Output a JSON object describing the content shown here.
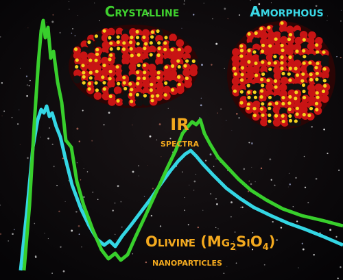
{
  "labels": {
    "crystalline": "Crystalline",
    "amorphous": "Amorphous",
    "ir": "IR",
    "spectra": "spectra",
    "olivine": [
      "Olivine (Mg",
      "2",
      "SiO",
      "4",
      ")"
    ],
    "nanoparticles": "nanoparticles"
  }
}
